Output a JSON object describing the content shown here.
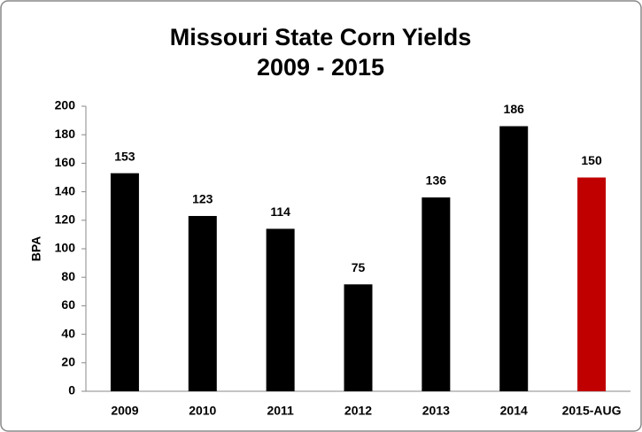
{
  "chart_data": {
    "type": "bar",
    "title": "Missouri State Corn Yields",
    "subtitle": "2009 - 2015",
    "y_label": "BPA",
    "categories": [
      "2009",
      "2010",
      "2011",
      "2012",
      "2013",
      "2014",
      "2015-AUG"
    ],
    "values": [
      153,
      123,
      114,
      75,
      136,
      186,
      150
    ],
    "colors": [
      "#000000",
      "#000000",
      "#000000",
      "#000000",
      "#000000",
      "#000000",
      "#c00000"
    ],
    "ylim": [
      0,
      200
    ],
    "yticks": [
      0,
      20,
      40,
      60,
      80,
      100,
      120,
      140,
      160,
      180,
      200
    ],
    "grid": false,
    "data_labels": true
  }
}
